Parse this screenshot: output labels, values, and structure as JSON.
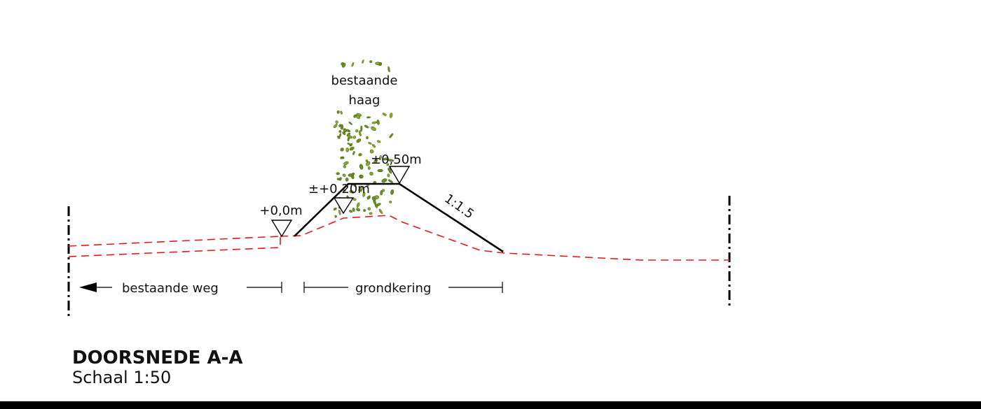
{
  "labels": {
    "hedge": [
      "bestaande",
      "haag"
    ],
    "level_top": "±0,50m",
    "level_mid": "±+0,20m",
    "level_zero": "+0,0m",
    "slope": "1:1.5"
  },
  "dimensions": {
    "road": "bestaande weg",
    "retaining": "grondkering"
  },
  "title": "DOORSNEDE A-A",
  "scale": "Schaal 1:50"
}
